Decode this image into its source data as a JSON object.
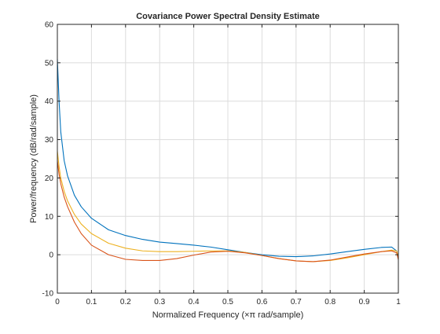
{
  "chart_data": {
    "type": "line",
    "title": "Covariance Power Spectral Density Estimate",
    "xlabel": "Normalized Frequency  (×π rad/sample)",
    "ylabel": "Power/frequency (dB/rad/sample)",
    "xlim": [
      0,
      1
    ],
    "ylim": [
      -10,
      60
    ],
    "xticks": [
      0,
      0.1,
      0.2,
      0.3,
      0.4,
      0.5,
      0.6,
      0.7,
      0.8,
      0.9,
      1
    ],
    "xtick_labels": [
      "0",
      "0.1",
      "0.2",
      "0.3",
      "0.4",
      "0.5",
      "0.6",
      "0.7",
      "0.8",
      "0.9",
      "1"
    ],
    "yticks": [
      -10,
      0,
      10,
      20,
      30,
      40,
      50,
      60
    ],
    "ytick_labels": [
      "-10",
      "0",
      "10",
      "20",
      "30",
      "40",
      "50",
      "60"
    ],
    "grid": true,
    "legend": "none",
    "series": [
      {
        "color": "#0072bd",
        "x": [
          0,
          0.005,
          0.01,
          0.02,
          0.03,
          0.05,
          0.07,
          0.1,
          0.15,
          0.2,
          0.25,
          0.3,
          0.35,
          0.4,
          0.45,
          0.5,
          0.55,
          0.6,
          0.65,
          0.7,
          0.75,
          0.8,
          0.85,
          0.9,
          0.95,
          0.98,
          0.995,
          1
        ],
        "y": [
          51,
          40,
          32,
          24.5,
          20.5,
          15.5,
          12.5,
          9.5,
          6.5,
          5,
          4,
          3.3,
          2.9,
          2.5,
          2,
          1.3,
          0.6,
          0,
          -0.4,
          -0.5,
          -0.3,
          0.2,
          0.8,
          1.4,
          1.9,
          2,
          1,
          -1
        ]
      },
      {
        "color": "#edb120",
        "x": [
          0,
          0.005,
          0.01,
          0.02,
          0.03,
          0.05,
          0.07,
          0.1,
          0.15,
          0.2,
          0.25,
          0.3,
          0.35,
          0.4,
          0.45,
          0.5,
          0.55,
          0.6,
          0.65,
          0.7,
          0.75,
          0.8,
          0.85,
          0.9,
          0.95,
          0.98,
          0.995,
          1
        ],
        "y": [
          27,
          23,
          20,
          16.5,
          14,
          10.5,
          8,
          5.5,
          3,
          1.7,
          1,
          0.8,
          0.8,
          0.9,
          1,
          1,
          0.6,
          -0.2,
          -1,
          -1.6,
          -1.8,
          -1.5,
          -0.8,
          0,
          0.8,
          1.2,
          1,
          -0.5
        ]
      },
      {
        "color": "#d95319",
        "x": [
          0,
          0.005,
          0.01,
          0.02,
          0.03,
          0.05,
          0.07,
          0.1,
          0.15,
          0.2,
          0.25,
          0.3,
          0.35,
          0.4,
          0.45,
          0.5,
          0.55,
          0.6,
          0.65,
          0.7,
          0.75,
          0.8,
          0.85,
          0.9,
          0.95,
          0.98,
          0.995,
          1
        ],
        "y": [
          24.5,
          21,
          18.5,
          15,
          12.5,
          8.5,
          5.5,
          2.5,
          0,
          -1.2,
          -1.5,
          -1.5,
          -1,
          -0.1,
          0.7,
          0.9,
          0.5,
          -0.2,
          -1,
          -1.6,
          -1.8,
          -1.4,
          -0.6,
          0.2,
          0.8,
          1,
          0.5,
          -1.3
        ]
      }
    ]
  }
}
